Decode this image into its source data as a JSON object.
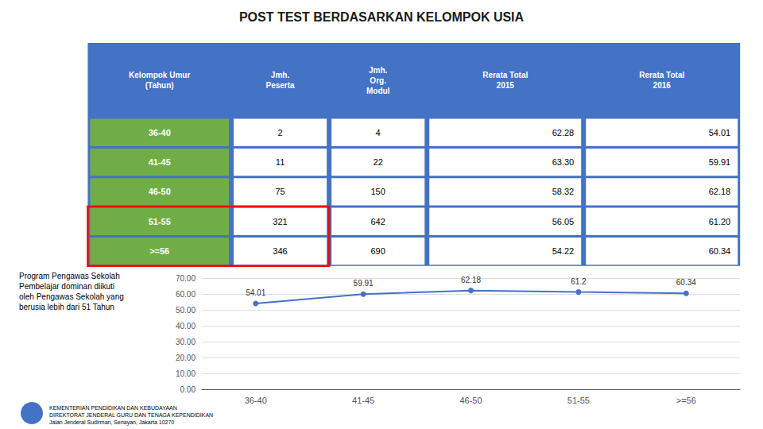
{
  "chart_data": {
    "type": "line",
    "title": "POST TEST BERDASARKAN KELOMPOK USIA",
    "categories": [
      "36-40",
      "41-45",
      "46-50",
      "51-55",
      ">=56"
    ],
    "values": [
      54.01,
      59.91,
      62.18,
      61.2,
      60.34
    ],
    "color": "#4472C4",
    "marker": "circle",
    "data_labels": true,
    "ylim": [
      0,
      70
    ],
    "yticks": [
      {
        "value": 0,
        "label": "0.00"
      },
      {
        "value": 10,
        "label": "10.00"
      },
      {
        "value": 20,
        "label": "20.00"
      },
      {
        "value": 30,
        "label": "30.00"
      },
      {
        "value": 40,
        "label": "40.00"
      },
      {
        "value": 50,
        "label": "50.00"
      },
      {
        "value": 60,
        "label": "60.00"
      },
      {
        "value": 70,
        "label": "70.00"
      }
    ],
    "grid": true,
    "table_headers": [
      "Kelompok Umur\n(Tahun)",
      "Jmh.\nPeserta",
      "Jmh.\nOrg.\nModul",
      "Rerata Total\n2015",
      "Rerata Total\n2016"
    ],
    "table_rows": [
      [
        "36-40",
        "2",
        "4",
        "62.28",
        "54.01"
      ],
      [
        "41-45",
        "11",
        "22",
        "63.30",
        "59.91"
      ],
      [
        "46-50",
        "75",
        "150",
        "58.32",
        "62.18"
      ],
      [
        "51-55",
        "321",
        "642",
        "56.05",
        "61.20"
      ],
      [
        ">=56",
        "346",
        "690",
        "54.22",
        "60.34"
      ]
    ],
    "highlight": [
      "51-55",
      ">=56"
    ],
    "annotations": [
      "Program Pengawas Sekolah\nPembelajar dominan diikuti\noleh Pengawas Sekolah yang\nberusia lebih dari 51 Tahun"
    ],
    "footer": [
      "KEMENTERIAN PENDIDIKAN DAN KEBUDAYAAN",
      "DIREKTORAT JENDERAL GURU DAN TENAGA KEPENDIDIKAN",
      "Jalan Jenderal Sudirman, Senayan, Jakarta 10270"
    ]
  }
}
